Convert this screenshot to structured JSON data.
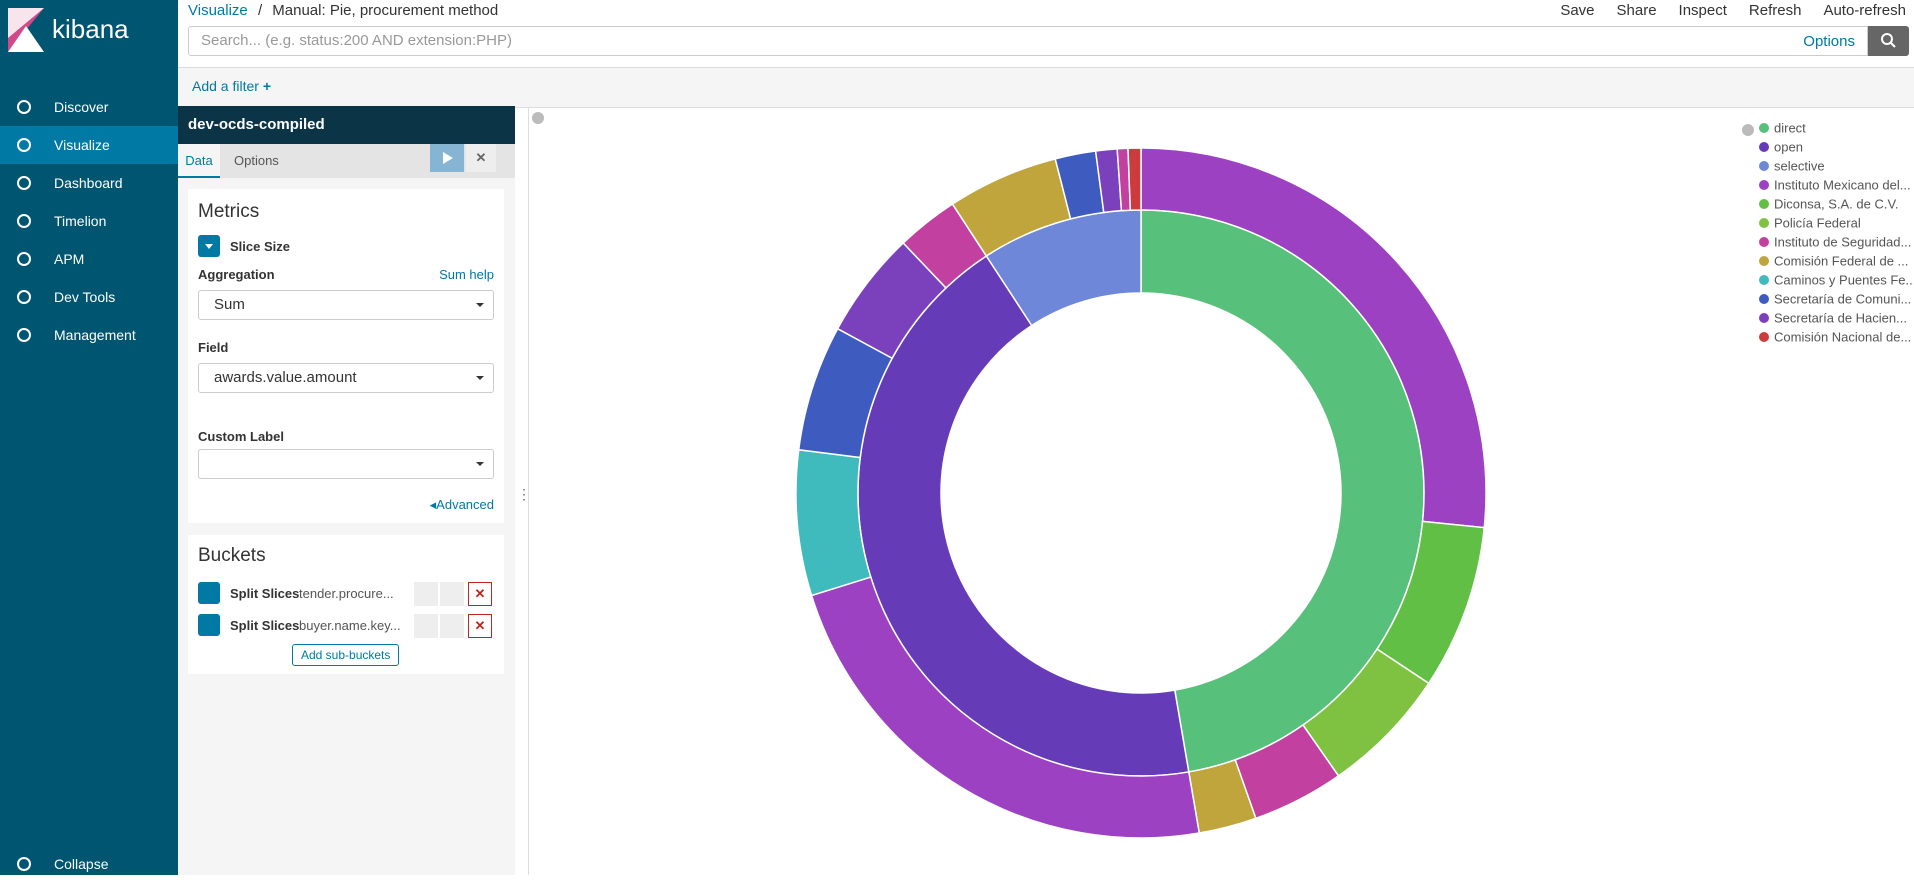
{
  "nav": {
    "brand": "kibana",
    "items": [
      "Discover",
      "Visualize",
      "Dashboard",
      "Timelion",
      "APM",
      "Dev Tools",
      "Management"
    ],
    "active": 1,
    "collapse": "Collapse"
  },
  "breadcrumb": {
    "root": "Visualize",
    "separator": "/",
    "current": "Manual: Pie, procurement method"
  },
  "top_menu": [
    "Save",
    "Share",
    "Inspect",
    "Refresh",
    "Auto-refresh"
  ],
  "search": {
    "placeholder": "Search... (e.g. status:200 AND extension:PHP)",
    "options": "Options"
  },
  "add_filter": "Add a filter",
  "editor": {
    "index": "dev-ocds-compiled",
    "tabs": [
      "Data",
      "Options"
    ],
    "metrics": {
      "title": "Metrics",
      "item": "Slice Size",
      "aggregation_label": "Aggregation",
      "help": "Sum help",
      "aggregation": "Sum",
      "field_label": "Field",
      "field": "awards.value.amount",
      "custom_label": "Custom Label",
      "advanced": "Advanced"
    },
    "buckets": {
      "title": "Buckets",
      "rows": [
        {
          "label": "Split Slices",
          "field": "tender.procure..."
        },
        {
          "label": "Split Slices",
          "field": "buyer.name.key..."
        }
      ],
      "add": "Add sub-buckets"
    }
  },
  "chart_data": {
    "type": "pie",
    "donut": true,
    "slices": [
      {
        "value": 47.3,
        "color": "#57c17b",
        "children": [
          {
            "value": 26.6,
            "color": "#9b41c2"
          },
          {
            "value": 7.7,
            "color": "#62bf45"
          },
          {
            "value": 6.0,
            "color": "#7fc241"
          },
          {
            "value": 4.3,
            "color": "#c2409f"
          },
          {
            "value": 2.7,
            "color": "#c0a43c"
          }
        ]
      },
      {
        "value": 43.5,
        "color": "#653bb7",
        "children": [
          {
            "value": 22.9,
            "color": "#9b41c2"
          },
          {
            "value": 6.8,
            "color": "#3fbabd"
          },
          {
            "value": 5.9,
            "color": "#3e5bc0"
          },
          {
            "value": 5.0,
            "color": "#7b41bd"
          },
          {
            "value": 2.9,
            "color": "#c2409f"
          }
        ]
      },
      {
        "value": 9.2,
        "color": "#6f87d8",
        "children": [
          {
            "value": 5.2,
            "color": "#c0a43c"
          },
          {
            "value": 1.9,
            "color": "#3e5bc0"
          },
          {
            "value": 1.0,
            "color": "#7b41bd"
          },
          {
            "value": 0.5,
            "color": "#c2409f"
          },
          {
            "value": 0.6,
            "color": "#cc3c3c"
          }
        ]
      }
    ],
    "legend": {
      "position": "right",
      "entries": [
        {
          "label": "direct",
          "color": "#57c17b"
        },
        {
          "label": "open",
          "color": "#653bb7"
        },
        {
          "label": "selective",
          "color": "#6f87d8"
        },
        {
          "label": "Instituto Mexicano del...",
          "color": "#9b41c2"
        },
        {
          "label": "Diconsa, S.A. de C.V.",
          "color": "#62bf45"
        },
        {
          "label": "Policía Federal",
          "color": "#7fc241"
        },
        {
          "label": "Instituto de Seguridad...",
          "color": "#c2409f"
        },
        {
          "label": "Comisión Federal de ...",
          "color": "#c0a43c"
        },
        {
          "label": "Caminos y Puentes Fe...",
          "color": "#3fbabd"
        },
        {
          "label": "Secretaría de Comuni...",
          "color": "#3e5bc0"
        },
        {
          "label": "Secretaría de Hacien...",
          "color": "#7b41bd"
        },
        {
          "label": "Comisión Nacional de...",
          "color": "#cc3c3c"
        }
      ]
    }
  }
}
